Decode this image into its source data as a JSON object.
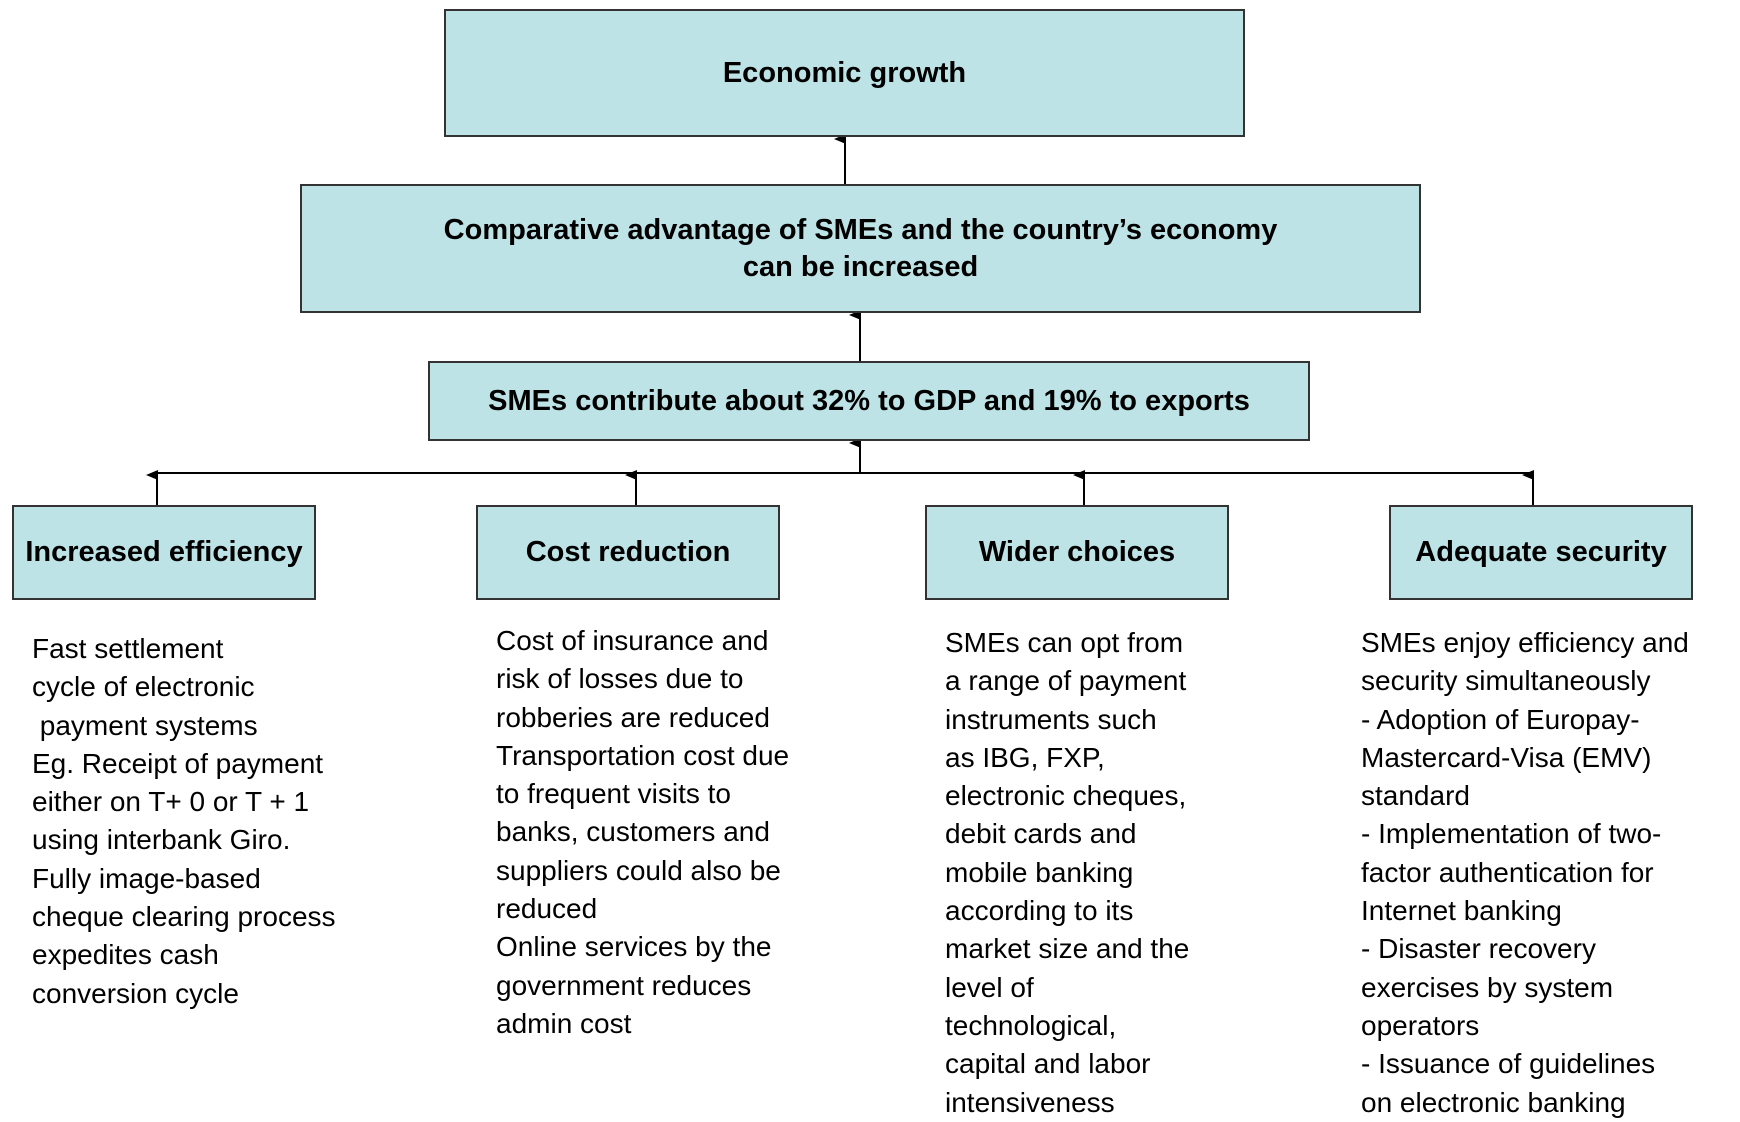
{
  "nodes": [
    {
      "lines": [
        "Economic growth"
      ]
    },
    {
      "lines": [
        "Comparative advantage of SMEs and the country’s economy",
        "can be increased"
      ]
    },
    {
      "lines": [
        "SMEs contribute about 32% to GDP and 19% to exports"
      ]
    },
    {
      "lines": [
        "Increased efficiency"
      ],
      "description": [
        "Fast settlement",
        "cycle of electronic",
        " payment systems",
        "Eg. Receipt of payment",
        "either on T+ 0 or T + 1",
        "using interbank Giro.",
        "Fully image-based",
        "cheque clearing process",
        "expedites cash",
        "conversion cycle"
      ]
    },
    {
      "lines": [
        "Cost reduction"
      ],
      "description": [
        "Cost of insurance and",
        "risk of losses due to",
        "robberies are reduced",
        "Transportation cost due",
        "to frequent visits to",
        "banks, customers and",
        "suppliers could also be",
        "reduced",
        "Online services by the",
        "government reduces",
        "admin cost"
      ]
    },
    {
      "lines": [
        "Wider choices"
      ],
      "description": [
        "SMEs can opt from",
        "a range of payment",
        "instruments such",
        "as IBG, FXP,",
        "electronic cheques,",
        "debit cards and",
        "mobile banking",
        "according to its",
        "market size and the",
        "level of",
        "technological,",
        "capital and labor",
        "intensiveness"
      ]
    },
    {
      "lines": [
        "Adequate security"
      ],
      "description": [
        "SMEs enjoy efficiency and",
        "security simultaneously",
        "- Adoption of Europay-",
        "Mastercard-Visa (EMV)",
        "standard",
        "- Implementation of two-",
        "factor authentication for",
        "Internet banking",
        "- Disaster recovery",
        "exercises by system",
        "operators",
        "- Issuance of guidelines",
        "on electronic banking"
      ]
    }
  ]
}
